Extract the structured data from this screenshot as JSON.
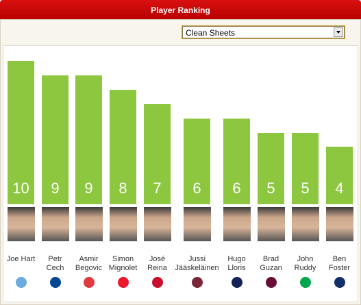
{
  "chart_data": {
    "type": "bar",
    "title": "Player Ranking",
    "metric": "Clean Sheets",
    "categories": [
      "Joe Hart",
      "Petr Cech",
      "Asmir Begovic",
      "Simon Mignolet",
      "José Reina",
      "Jussi Jääskeläinen",
      "Hugo Lloris",
      "Brad Guzan",
      "John Ruddy",
      "Ben Foster"
    ],
    "values": [
      10,
      9,
      9,
      8,
      7,
      6,
      6,
      5,
      5,
      4
    ],
    "color": "#8dc63f"
  }
}
